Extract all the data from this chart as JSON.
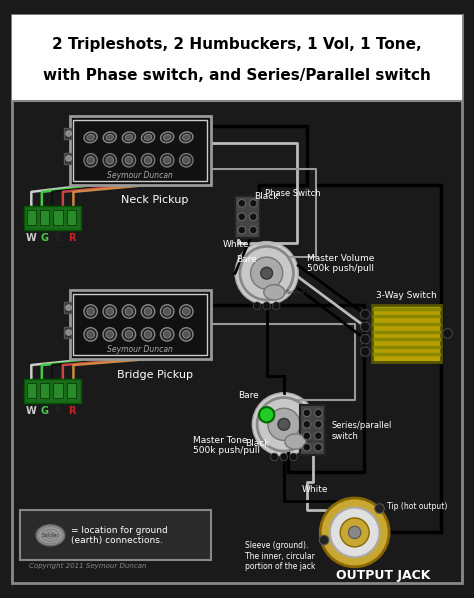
{
  "title_line1": "2 Tripleshots, 2 Humbuckers, 1 Vol, 1 Tone,",
  "title_line2": "with Phase switch, and Series/Parallel switch",
  "background_color": "#1a1a1a",
  "title_bg": "#ffffff",
  "copyright": "Copyright 2011 Seymour Duncan",
  "neck_label": "Neck Pickup",
  "bridge_label": "Bridge Pickup",
  "phase_switch_label": "Phase Switch",
  "master_volume_label": "Master Volume\n500k push/pull",
  "master_tone_label": "Master Tone\n500k push/pull",
  "series_parallel_label": "Series/parallel\nswitch",
  "three_way_label": "3-Way Switch",
  "output_jack_label": "OUTPUT JACK",
  "sleeve_label": "Sleeve (ground).\nThe inner, circular\nportion of the jack",
  "tip_label": "Tip (hot output)",
  "solder_legend": "= location for ground\n(earth) connections.",
  "seymour_text": "Seymour Duncan"
}
